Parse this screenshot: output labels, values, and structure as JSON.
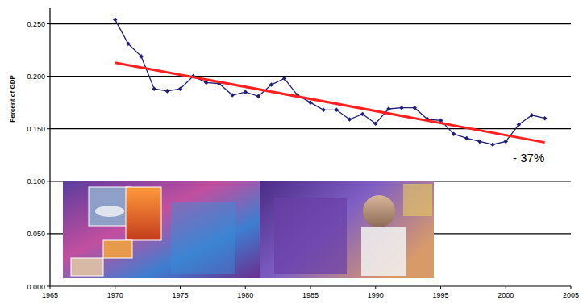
{
  "chart_data": {
    "type": "line",
    "y_label": "Percent of GDP",
    "annotation": "- 37%",
    "xlim": [
      1965,
      2005
    ],
    "xticks": [
      1965,
      1970,
      1975,
      1980,
      1985,
      1990,
      1995,
      2000,
      2005
    ],
    "ylim": [
      0,
      0.265
    ],
    "yticks": [
      {
        "value": 0,
        "label": "0.000"
      },
      {
        "value": 0.05,
        "label": "0.050"
      },
      {
        "value": 0.1,
        "label": "0.100"
      },
      {
        "value": 0.15,
        "label": "0.150"
      },
      {
        "value": 0.2,
        "label": "0.200"
      },
      {
        "value": 0.25,
        "label": "0.250"
      }
    ],
    "grid": true,
    "series": [
      {
        "type": "line",
        "color": "#1f1f7a",
        "marker": "diamond",
        "line_style": "solid",
        "x": [
          1970,
          1971,
          1972,
          1973,
          1974,
          1975,
          1976,
          1977,
          1978,
          1979,
          1980,
          1981,
          1982,
          1983,
          1984,
          1985,
          1986,
          1987,
          1988,
          1989,
          1990,
          1991,
          1992,
          1993,
          1994,
          1995,
          1996,
          1997,
          1998,
          1999,
          2000,
          2001,
          2002,
          2003
        ],
        "values": [
          0.254,
          0.231,
          0.219,
          0.188,
          0.186,
          0.188,
          0.2,
          0.194,
          0.193,
          0.182,
          0.185,
          0.181,
          0.192,
          0.198,
          0.182,
          0.175,
          0.168,
          0.168,
          0.159,
          0.164,
          0.155,
          0.169,
          0.17,
          0.17,
          0.159,
          0.158,
          0.145,
          0.141,
          0.138,
          0.135,
          0.138,
          0.154,
          0.163,
          0.16
        ]
      },
      {
        "type": "line",
        "color": "#ff2020",
        "marker": "none",
        "line_style": "solid",
        "x": [
          1970,
          2003
        ],
        "values": [
          0.213,
          0.137
        ]
      }
    ]
  }
}
